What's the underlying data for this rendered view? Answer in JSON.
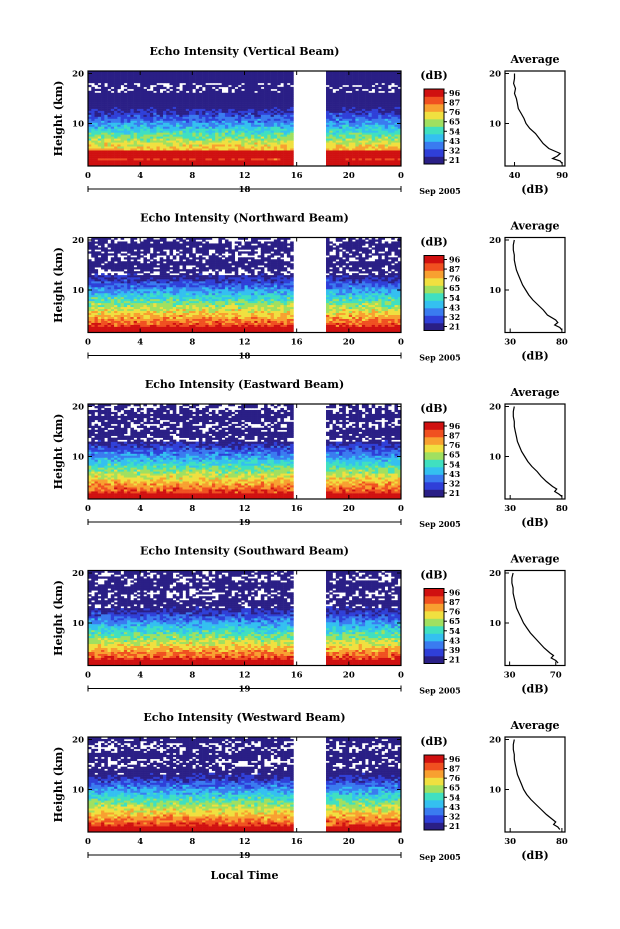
{
  "chart_data": [
    {
      "type": "heatmap",
      "title": "Echo Intensity (Vertical Beam)",
      "ylabel": "Height (km)",
      "y_ticks": [
        "10",
        "20"
      ],
      "x_ticks": [
        "0",
        "4",
        "8",
        "12",
        "16",
        "20",
        "0"
      ],
      "xlim": [
        0,
        24
      ],
      "ylim": [
        1.5,
        20.5
      ],
      "date_marker": "18",
      "month_label": "Sep 2005",
      "gap_hours": [
        15.8,
        18.2
      ],
      "colorbar": {
        "unit": "(dB)",
        "ticks": [
          "96",
          "87",
          "76",
          "65",
          "54",
          "43",
          "32",
          "21"
        ]
      },
      "average_panel": {
        "title": "Average",
        "xlabel": "(dB)",
        "x_ticks": [
          "40",
          "90"
        ],
        "xlim": [
          30,
          93
        ],
        "y_ticks": [
          "10",
          "20"
        ],
        "profile": [
          [
            2,
            90
          ],
          [
            2.5,
            88
          ],
          [
            3,
            80
          ],
          [
            3.5,
            85
          ],
          [
            4,
            88
          ],
          [
            4.5,
            82
          ],
          [
            5,
            76
          ],
          [
            6,
            70
          ],
          [
            7,
            66
          ],
          [
            8,
            62
          ],
          [
            9,
            56
          ],
          [
            10,
            52
          ],
          [
            11,
            50
          ],
          [
            12,
            47
          ],
          [
            13,
            44
          ],
          [
            14,
            43
          ],
          [
            15,
            42
          ],
          [
            16,
            40
          ],
          [
            17,
            41
          ],
          [
            18,
            39
          ],
          [
            19,
            40
          ],
          [
            20,
            40
          ]
        ]
      }
    },
    {
      "type": "heatmap",
      "title": "Echo Intensity (Northward Beam)",
      "ylabel": "Height (km)",
      "y_ticks": [
        "10",
        "20"
      ],
      "x_ticks": [
        "0",
        "4",
        "8",
        "12",
        "16",
        "20",
        "0"
      ],
      "xlim": [
        0,
        24
      ],
      "ylim": [
        1.5,
        20.5
      ],
      "date_marker": "18",
      "month_label": "Sep 2005",
      "gap_hours": [
        15.8,
        18.2
      ],
      "colorbar": {
        "unit": "(dB)",
        "ticks": [
          "96",
          "87",
          "76",
          "65",
          "54",
          "43",
          "32",
          "21"
        ]
      },
      "average_panel": {
        "title": "Average",
        "xlabel": "(dB)",
        "x_ticks": [
          "30",
          "80"
        ],
        "xlim": [
          25,
          83
        ],
        "y_ticks": [
          "10",
          "20"
        ],
        "profile": [
          [
            2,
            80
          ],
          [
            2.5,
            78
          ],
          [
            3,
            73
          ],
          [
            3.5,
            76
          ],
          [
            4,
            74
          ],
          [
            5,
            66
          ],
          [
            6,
            62
          ],
          [
            7,
            57
          ],
          [
            8,
            52
          ],
          [
            9,
            48
          ],
          [
            10,
            45
          ],
          [
            11,
            42
          ],
          [
            12,
            40
          ],
          [
            13,
            38
          ],
          [
            14,
            36
          ],
          [
            15,
            35
          ],
          [
            16,
            34
          ],
          [
            17,
            34
          ],
          [
            18,
            33
          ],
          [
            19,
            33
          ],
          [
            20,
            34
          ]
        ]
      }
    },
    {
      "type": "heatmap",
      "title": "Echo Intensity (Eastward Beam)",
      "ylabel": "Height (km)",
      "y_ticks": [
        "10",
        "20"
      ],
      "x_ticks": [
        "0",
        "4",
        "8",
        "12",
        "16",
        "20",
        "0"
      ],
      "xlim": [
        0,
        24
      ],
      "ylim": [
        1.5,
        20.5
      ],
      "date_marker": "19",
      "month_label": "Sep 2005",
      "gap_hours": [
        15.8,
        18.2
      ],
      "colorbar": {
        "unit": "(dB)",
        "ticks": [
          "96",
          "87",
          "76",
          "65",
          "54",
          "43",
          "32",
          "21"
        ]
      },
      "average_panel": {
        "title": "Average",
        "xlabel": "(dB)",
        "x_ticks": [
          "30",
          "80"
        ],
        "xlim": [
          25,
          83
        ],
        "y_ticks": [
          "10",
          "20"
        ],
        "profile": [
          [
            2,
            80
          ],
          [
            2.5,
            77
          ],
          [
            3,
            73
          ],
          [
            3.5,
            75
          ],
          [
            4,
            71
          ],
          [
            5,
            65
          ],
          [
            6,
            60
          ],
          [
            7,
            56
          ],
          [
            8,
            51
          ],
          [
            9,
            47
          ],
          [
            10,
            44
          ],
          [
            11,
            41
          ],
          [
            12,
            39
          ],
          [
            13,
            37
          ],
          [
            14,
            36
          ],
          [
            15,
            35
          ],
          [
            16,
            34
          ],
          [
            17,
            34
          ],
          [
            18,
            33
          ],
          [
            19,
            33
          ],
          [
            20,
            34
          ]
        ]
      }
    },
    {
      "type": "heatmap",
      "title": "Echo Intensity (Southward Beam)",
      "ylabel": "Height (km)",
      "y_ticks": [
        "10",
        "20"
      ],
      "x_ticks": [
        "0",
        "4",
        "8",
        "12",
        "16",
        "20",
        "0"
      ],
      "xlim": [
        0,
        24
      ],
      "ylim": [
        1.5,
        20.5
      ],
      "date_marker": "19",
      "month_label": "Sep 2005",
      "gap_hours": [
        15.8,
        18.2
      ],
      "colorbar": {
        "unit": "(dB)",
        "ticks": [
          "96",
          "87",
          "76",
          "65",
          "54",
          "43",
          "39",
          "21"
        ]
      },
      "average_panel": {
        "title": "Average",
        "xlabel": "(dB)",
        "x_ticks": [
          "30",
          "70"
        ],
        "xlim": [
          26,
          78
        ],
        "y_ticks": [
          "10",
          "20"
        ],
        "profile": [
          [
            2,
            72
          ],
          [
            2.5,
            70
          ],
          [
            3,
            66
          ],
          [
            3.5,
            68
          ],
          [
            4,
            65
          ],
          [
            5,
            60
          ],
          [
            6,
            56
          ],
          [
            7,
            52
          ],
          [
            8,
            48
          ],
          [
            9,
            45
          ],
          [
            10,
            42
          ],
          [
            11,
            40
          ],
          [
            12,
            38
          ],
          [
            13,
            36
          ],
          [
            14,
            35
          ],
          [
            15,
            34
          ],
          [
            16,
            33
          ],
          [
            17,
            33
          ],
          [
            18,
            32
          ],
          [
            19,
            32
          ],
          [
            20,
            33
          ]
        ]
      }
    },
    {
      "type": "heatmap",
      "title": "Echo Intensity (Westward Beam)",
      "ylabel": "Height (km)",
      "y_ticks": [
        "10",
        "20"
      ],
      "x_ticks": [
        "0",
        "4",
        "8",
        "12",
        "16",
        "20",
        "0"
      ],
      "xlim": [
        0,
        24
      ],
      "ylim": [
        1.5,
        20.5
      ],
      "date_marker": "19",
      "month_label": "Sep 2005",
      "gap_hours": [
        15.8,
        18.2
      ],
      "colorbar": {
        "unit": "(dB)",
        "ticks": [
          "96",
          "87",
          "76",
          "65",
          "54",
          "43",
          "32",
          "21"
        ]
      },
      "average_panel": {
        "title": "Average",
        "xlabel": "(dB)",
        "x_ticks": [
          "30",
          "80"
        ],
        "xlim": [
          25,
          83
        ],
        "y_ticks": [
          "10",
          "20"
        ],
        "profile": [
          [
            2,
            78
          ],
          [
            2.5,
            76
          ],
          [
            3,
            72
          ],
          [
            3.5,
            74
          ],
          [
            4,
            71
          ],
          [
            5,
            65
          ],
          [
            6,
            60
          ],
          [
            7,
            55
          ],
          [
            8,
            50
          ],
          [
            9,
            46
          ],
          [
            10,
            43
          ],
          [
            11,
            41
          ],
          [
            12,
            39
          ],
          [
            13,
            37
          ],
          [
            14,
            36
          ],
          [
            15,
            35
          ],
          [
            16,
            34
          ],
          [
            17,
            34
          ],
          [
            18,
            33
          ],
          [
            19,
            33
          ],
          [
            20,
            34
          ]
        ]
      }
    }
  ],
  "x_axis_label": "Local Time",
  "colormap": [
    "#2a1f86",
    "#2f3fd8",
    "#3a7bf0",
    "#34c0f0",
    "#40e0c0",
    "#a0e060",
    "#f0e040",
    "#f8a030",
    "#f05020",
    "#d01010"
  ]
}
